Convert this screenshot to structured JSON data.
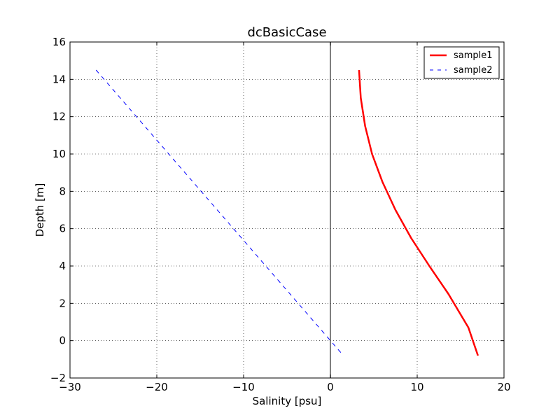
{
  "chart_data": {
    "type": "line",
    "title": "dcBasicCase",
    "xlabel": "Salinity [psu]",
    "ylabel": "Depth [m]",
    "xlim": [
      -30,
      20
    ],
    "ylim": [
      -2,
      16
    ],
    "xticks": [
      "−30",
      "−20",
      "−10",
      "0",
      "10",
      "20"
    ],
    "xtick_values": [
      -30,
      -20,
      -10,
      0,
      10,
      20
    ],
    "yticks": [
      "−2",
      "0",
      "2",
      "4",
      "6",
      "8",
      "10",
      "12",
      "14",
      "16"
    ],
    "ytick_values": [
      -2,
      0,
      2,
      4,
      6,
      8,
      10,
      12,
      14,
      16
    ],
    "grid": true,
    "grid_style": "dotted",
    "legend_position": "top-right",
    "reference_line_x": 0,
    "series": [
      {
        "name": "sample1",
        "color": "#ff0000",
        "line_style": "solid",
        "x": [
          3.3,
          3.5,
          4.0,
          4.8,
          6.0,
          7.5,
          9.3,
          11.4,
          13.6,
          15.9,
          17.0
        ],
        "y": [
          14.5,
          13.0,
          11.5,
          10.0,
          8.5,
          7.0,
          5.5,
          4.0,
          2.5,
          0.7,
          -0.8
        ]
      },
      {
        "name": "sample2",
        "color": "#0000ff",
        "line_style": "dashed",
        "x": [
          -27.0,
          1.5
        ],
        "y": [
          14.5,
          -0.8
        ]
      }
    ]
  }
}
